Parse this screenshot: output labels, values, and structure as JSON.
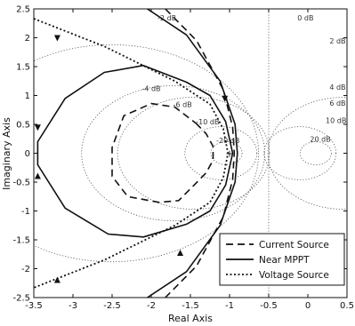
{
  "chart_data": {
    "type": "line",
    "xlabel": "Real Axis",
    "ylabel": "Imaginary Axis",
    "xlim": [
      -3.5,
      0.5
    ],
    "ylim": [
      -2.5,
      2.5
    ],
    "x_ticks": [
      -3.5,
      -3,
      -2.5,
      -2,
      -1.5,
      -1,
      -0.5,
      0,
      0.5
    ],
    "x_tick_labels": [
      "-3.5",
      "-3",
      "-2.5",
      "-2",
      "-1.5",
      "-1",
      "-0.5",
      "0",
      "0.5"
    ],
    "y_ticks": [
      -2.5,
      -2,
      -1.5,
      -1,
      -0.5,
      0,
      0.5,
      1,
      1.5,
      2,
      2.5
    ],
    "y_tick_labels": [
      "-2.5",
      "-2",
      "-1.5",
      "-1",
      "-0.5",
      "0",
      "0.5",
      "1",
      "1.5",
      "2",
      "2.5"
    ],
    "grid": "nichols-style dB contours (dotted)",
    "legend_position": "bottom-right",
    "critical_point": [
      -1,
      0
    ],
    "annotations": [
      {
        "text": "0 dB",
        "x": -0.03,
        "y": 2.3
      },
      {
        "text": "-2 dB",
        "x": -1.8,
        "y": 2.3
      },
      {
        "text": "2 dB",
        "x": 0.38,
        "y": 1.9
      },
      {
        "text": "4 dB",
        "x": 0.38,
        "y": 1.1
      },
      {
        "text": "6 dB",
        "x": 0.38,
        "y": 0.82
      },
      {
        "text": "10 dB",
        "x": 0.36,
        "y": 0.52
      },
      {
        "text": "20 dB",
        "x": 0.16,
        "y": 0.2
      },
      {
        "text": "-4 dB",
        "x": -2.0,
        "y": 1.08
      },
      {
        "text": "-6 dB",
        "x": -1.6,
        "y": 0.8
      },
      {
        "text": "-10 dB",
        "x": -1.28,
        "y": 0.5
      },
      {
        "text": "-20 dB",
        "x": -1.02,
        "y": 0.18
      }
    ],
    "contours": [
      {
        "type": "circle",
        "cx": -1.04,
        "cy": 0,
        "r": 0.2
      },
      {
        "type": "circle",
        "cx": -1.11,
        "cy": 0,
        "r": 0.46
      },
      {
        "type": "circle",
        "cx": -1.46,
        "cy": 0,
        "r": 0.97
      },
      {
        "type": "circle",
        "cx": -1.72,
        "cy": 0,
        "r": 1.17
      },
      {
        "type": "circle",
        "cx": -2.51,
        "cy": 0,
        "r": 1.88
      },
      {
        "type": "circle",
        "cx": 0.46,
        "cy": 0,
        "r": 0.97
      },
      {
        "type": "circle",
        "cx": -0.1,
        "cy": 0,
        "r": 0.46
      },
      {
        "type": "circle",
        "cx": 0.1,
        "cy": 0,
        "r": 0.2
      },
      {
        "type": "vertical",
        "x": -0.5
      }
    ],
    "series": [
      {
        "name": "Current Source",
        "style": "dashed",
        "closed": true,
        "points": [
          [
            -1.43,
            0.52
          ],
          [
            -1.3,
            0.34
          ],
          [
            -1.21,
            0.12
          ],
          [
            -1.21,
            -0.12
          ],
          [
            -1.3,
            -0.34
          ],
          [
            -1.43,
            -0.52
          ],
          [
            -1.65,
            -0.82
          ],
          [
            -1.9,
            -0.85
          ],
          [
            -2.3,
            -0.75
          ],
          [
            -2.5,
            -0.4
          ],
          [
            -2.5,
            0.1
          ],
          [
            -2.35,
            0.65
          ],
          [
            -2.0,
            0.86
          ],
          [
            -1.7,
            0.8
          ],
          [
            -1.43,
            0.52
          ]
        ]
      },
      {
        "name": "Near MPPT",
        "style": "solid",
        "closed": true,
        "points": [
          [
            -1.55,
            1.23
          ],
          [
            -1.25,
            1.0
          ],
          [
            -1.05,
            0.55
          ],
          [
            -0.96,
            0.0
          ],
          [
            -1.05,
            -0.55
          ],
          [
            -1.25,
            -1.0
          ],
          [
            -1.55,
            -1.23
          ],
          [
            -2.1,
            -1.45
          ],
          [
            -2.55,
            -1.4
          ],
          [
            -3.1,
            -0.95
          ],
          [
            -3.45,
            -0.2
          ],
          [
            -3.45,
            0.2
          ],
          [
            -3.1,
            0.95
          ],
          [
            -2.6,
            1.4
          ],
          [
            -2.1,
            1.52
          ],
          [
            -1.55,
            1.23
          ]
        ]
      },
      {
        "name": "Voltage Source",
        "style": "dotted",
        "closed": false,
        "points": [
          [
            -3.5,
            2.33
          ],
          [
            -2.6,
            1.85
          ],
          [
            -1.7,
            1.25
          ],
          [
            -1.25,
            0.85
          ],
          [
            -1.08,
            0.42
          ],
          [
            -1.02,
            0.0
          ],
          [
            -1.08,
            -0.42
          ],
          [
            -1.25,
            -0.85
          ],
          [
            -1.7,
            -1.25
          ],
          [
            -2.6,
            -1.85
          ],
          [
            -3.5,
            -2.33
          ]
        ]
      },
      {
        "name": "Near MPPT (branch)",
        "style": "solid",
        "closed": false,
        "points": [
          [
            -2.05,
            2.5
          ],
          [
            -1.55,
            2.05
          ],
          [
            -1.12,
            1.25
          ],
          [
            -0.93,
            0.5
          ],
          [
            -0.9,
            0.0
          ],
          [
            -0.93,
            -0.5
          ],
          [
            -1.12,
            -1.25
          ],
          [
            -1.55,
            -2.05
          ],
          [
            -2.05,
            -2.5
          ]
        ]
      },
      {
        "name": "Current Source (branch)",
        "style": "dashed",
        "closed": false,
        "points": [
          [
            -1.82,
            2.5
          ],
          [
            -1.42,
            1.95
          ],
          [
            -1.08,
            1.1
          ],
          [
            -0.96,
            0.45
          ],
          [
            -0.94,
            0.0
          ],
          [
            -0.96,
            -0.45
          ],
          [
            -1.08,
            -1.1
          ],
          [
            -1.42,
            -1.95
          ],
          [
            -1.82,
            -2.5
          ]
        ]
      }
    ],
    "legend": [
      {
        "label": "Current Source",
        "style": "dashed"
      },
      {
        "label": "Near MPPT",
        "style": "solid"
      },
      {
        "label": "Voltage Source",
        "style": "dotted"
      }
    ]
  }
}
